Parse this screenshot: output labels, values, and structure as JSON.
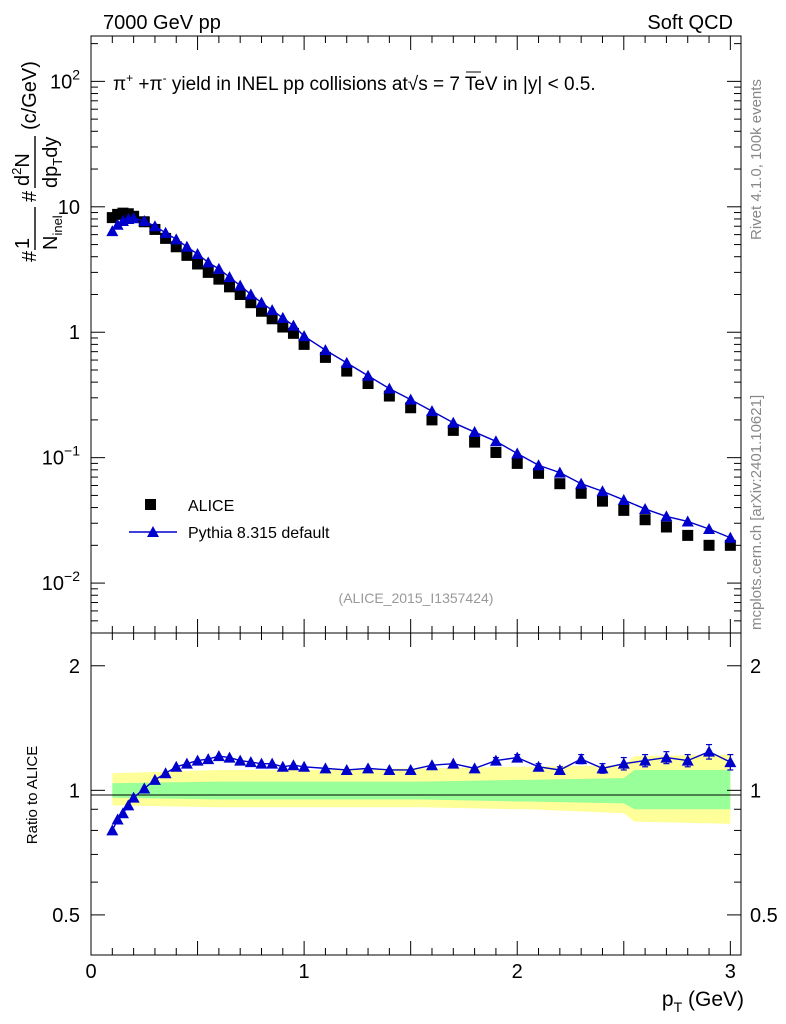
{
  "header": {
    "left": "7000 GeV pp",
    "right": "Soft QCD",
    "side_top": "Rivet 4.1.0,  100k events",
    "side_bottom": "mcplots.cern.ch [arXiv:2401.10621]"
  },
  "colors": {
    "data": "#000000",
    "mc": "#0000cc",
    "band_inner": "#99ff99",
    "band_outer": "#ffff99"
  },
  "chart_data": [
    {
      "type": "scatter",
      "title": "π+ +π- yield in INEL pp collisions at √s = 7 TeV in |y| < 0.5.",
      "title_parts": {
        "a": "π",
        "sup1": "+",
        "b": " +π",
        "sup2": "-",
        "c": " yield in INEL pp collisions at",
        "d": "s =  7 TeV in |y| < 0.5."
      },
      "ylabel": "1/N_inel d²N/dp_T dy (c/GeV)",
      "ylabel_parts": {
        "hash1": "#",
        "num1": "1",
        "den1": "N",
        "den1_sub": "inel",
        "hash2": "#",
        "num2": "d",
        "num2_sup": "2",
        "num2_b": "N",
        "den2": "dp",
        "den2_sub": "T",
        "den2_b": "dy",
        "unit": "(c/GeV)"
      },
      "yscale": "log",
      "ylim": [
        0.004,
        230
      ],
      "xlim": [
        0,
        3.05
      ],
      "ytick_labels": [
        {
          "value": 100,
          "base": "10",
          "exp": "2"
        },
        {
          "value": 10,
          "base": "10",
          "exp": ""
        },
        {
          "value": 1,
          "base": "1",
          "exp": ""
        },
        {
          "value": 0.1,
          "base": "10",
          "exp": "−1"
        },
        {
          "value": 0.01,
          "base": "10",
          "exp": "−2"
        }
      ],
      "legend": {
        "position": "bottom-left",
        "entries": [
          "ALICE",
          "Pythia 8.315 default"
        ]
      },
      "annotation": "(ALICE_2015_I1357424)",
      "series": [
        {
          "name": "ALICE",
          "x": [
            0.1,
            0.125,
            0.15,
            0.175,
            0.2,
            0.25,
            0.3,
            0.35,
            0.4,
            0.45,
            0.5,
            0.55,
            0.6,
            0.65,
            0.7,
            0.75,
            0.8,
            0.85,
            0.9,
            0.95,
            1.0,
            1.1,
            1.2,
            1.3,
            1.4,
            1.5,
            1.6,
            1.7,
            1.8,
            1.9,
            2.0,
            2.1,
            2.2,
            2.3,
            2.4,
            2.5,
            2.6,
            2.7,
            2.8,
            2.9,
            3.0
          ],
          "y": [
            8.2,
            8.7,
            8.9,
            8.8,
            8.4,
            7.6,
            6.6,
            5.6,
            4.8,
            4.1,
            3.5,
            3.0,
            2.65,
            2.3,
            2.0,
            1.72,
            1.47,
            1.28,
            1.1,
            0.98,
            0.8,
            0.63,
            0.49,
            0.39,
            0.31,
            0.25,
            0.2,
            0.165,
            0.133,
            0.11,
            0.09,
            0.075,
            0.062,
            0.052,
            0.045,
            0.038,
            0.032,
            0.028,
            0.024,
            0.02,
            0.02
          ]
        },
        {
          "name": "Pythia 8.315 default",
          "x": [
            0.1,
            0.125,
            0.15,
            0.175,
            0.2,
            0.25,
            0.3,
            0.35,
            0.4,
            0.45,
            0.5,
            0.55,
            0.6,
            0.65,
            0.7,
            0.75,
            0.8,
            0.85,
            0.9,
            0.95,
            1.0,
            1.1,
            1.2,
            1.3,
            1.4,
            1.5,
            1.6,
            1.7,
            1.8,
            1.9,
            2.0,
            2.1,
            2.2,
            2.3,
            2.4,
            2.5,
            2.6,
            2.7,
            2.8,
            2.9,
            3.0
          ],
          "y": [
            6.4,
            7.2,
            7.7,
            8.0,
            8.1,
            7.7,
            7.0,
            6.2,
            5.5,
            4.8,
            4.2,
            3.6,
            3.2,
            2.75,
            2.35,
            2.0,
            1.72,
            1.5,
            1.3,
            1.13,
            0.93,
            0.72,
            0.57,
            0.45,
            0.355,
            0.29,
            0.235,
            0.19,
            0.16,
            0.135,
            0.108,
            0.087,
            0.076,
            0.062,
            0.054,
            0.046,
            0.039,
            0.034,
            0.031,
            0.027,
            0.023
          ]
        }
      ]
    },
    {
      "type": "line",
      "ylabel": "Ratio to ALICE",
      "xlabel": "p_T (GeV)",
      "xlabel_parts": {
        "p": "p",
        "sub": "T",
        "unit": " (GeV)"
      },
      "yscale": "log",
      "ylim": [
        0.4,
        2.4
      ],
      "xlim": [
        0,
        3.05
      ],
      "xtick_labels": [
        "0",
        "1",
        "2",
        "3"
      ],
      "ytick_labels": [
        "2",
        "1",
        "0.5"
      ],
      "bands": {
        "edges": [
          0.1,
          0.6,
          0.65,
          1.0,
          1.05,
          1.5,
          1.55,
          2.0,
          2.05,
          2.5,
          2.55,
          3.0
        ],
        "inner_up": [
          1.04,
          1.05,
          1.05,
          1.05,
          1.05,
          1.05,
          1.05,
          1.06,
          1.06,
          1.07,
          1.12,
          1.12
        ],
        "inner_down": [
          0.96,
          0.95,
          0.95,
          0.95,
          0.95,
          0.95,
          0.95,
          0.94,
          0.94,
          0.93,
          0.9,
          0.9
        ],
        "outer_up": [
          1.1,
          1.12,
          1.12,
          1.12,
          1.12,
          1.13,
          1.13,
          1.14,
          1.14,
          1.15,
          1.21,
          1.22
        ],
        "outer_down": [
          0.92,
          0.91,
          0.91,
          0.91,
          0.91,
          0.91,
          0.91,
          0.9,
          0.9,
          0.88,
          0.84,
          0.83
        ]
      },
      "series": [
        {
          "name": "Pythia 8.315 default",
          "x": [
            0.1,
            0.125,
            0.15,
            0.175,
            0.2,
            0.25,
            0.3,
            0.35,
            0.4,
            0.45,
            0.5,
            0.55,
            0.6,
            0.65,
            0.7,
            0.75,
            0.8,
            0.85,
            0.9,
            0.95,
            1.0,
            1.1,
            1.2,
            1.3,
            1.4,
            1.5,
            1.6,
            1.7,
            1.8,
            1.9,
            2.0,
            2.1,
            2.2,
            2.3,
            2.4,
            2.5,
            2.6,
            2.7,
            2.8,
            2.9,
            3.0
          ],
          "y": [
            0.8,
            0.85,
            0.88,
            0.92,
            0.96,
            1.01,
            1.06,
            1.1,
            1.14,
            1.16,
            1.18,
            1.19,
            1.21,
            1.2,
            1.18,
            1.17,
            1.16,
            1.16,
            1.14,
            1.15,
            1.14,
            1.13,
            1.12,
            1.13,
            1.12,
            1.12,
            1.15,
            1.16,
            1.13,
            1.18,
            1.2,
            1.14,
            1.12,
            1.19,
            1.13,
            1.16,
            1.18,
            1.2,
            1.18,
            1.24,
            1.17
          ],
          "err": [
            0,
            0,
            0,
            0,
            0,
            0,
            0,
            0,
            0,
            0,
            0,
            0,
            0,
            0,
            0,
            0,
            0,
            0,
            0,
            0,
            0,
            0,
            0,
            0,
            0,
            0,
            0,
            0,
            0,
            0.02,
            0.02,
            0.02,
            0.02,
            0.03,
            0.03,
            0.04,
            0.04,
            0.04,
            0.04,
            0.05,
            0.05
          ]
        }
      ]
    }
  ]
}
